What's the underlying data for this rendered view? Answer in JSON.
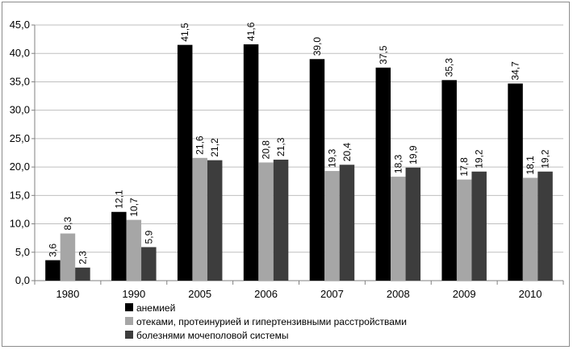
{
  "chart_data": {
    "type": "bar",
    "categories": [
      "1980",
      "1990",
      "2005",
      "2006",
      "2007",
      "2008",
      "2009",
      "2010"
    ],
    "series": [
      {
        "name": "анемией",
        "color": "#000000",
        "values": [
          3.6,
          12.1,
          41.5,
          41.6,
          39.0,
          37.5,
          35.3,
          34.7
        ],
        "labels": [
          "3,6",
          "12,1",
          "41,5",
          "41,6",
          "39,0",
          "37,5",
          "35,3",
          "34,7"
        ]
      },
      {
        "name": "отеками, протеинурией и гипертензивными расстройствами",
        "color": "#a6a6a6",
        "values": [
          8.3,
          10.7,
          21.6,
          20.8,
          19.3,
          18.3,
          17.8,
          18.1
        ],
        "labels": [
          "8,3",
          "10,7",
          "21,6",
          "20,8",
          "19,3",
          "18,3",
          "17,8",
          "18,1"
        ]
      },
      {
        "name": "болезнями мочеполовой системы",
        "color": "#3d3d3d",
        "values": [
          2.3,
          5.9,
          21.2,
          21.3,
          20.4,
          19.9,
          19.2,
          19.2
        ],
        "labels": [
          "2,3",
          "5,9",
          "21,2",
          "21,3",
          "20,4",
          "19,9",
          "19,2",
          "19,2"
        ]
      }
    ],
    "yticks": [
      0,
      5,
      10,
      15,
      20,
      25,
      30,
      35,
      40,
      45
    ],
    "ytick_labels": [
      "0,0",
      "5,0",
      "10,0",
      "15,0",
      "20,0",
      "25,0",
      "30,0",
      "35,0",
      "40,0",
      "45,0"
    ],
    "ylim": [
      0,
      45
    ],
    "title": "",
    "xlabel": "",
    "ylabel": "",
    "grid": "horizontal",
    "legend_position": "bottom-left"
  }
}
